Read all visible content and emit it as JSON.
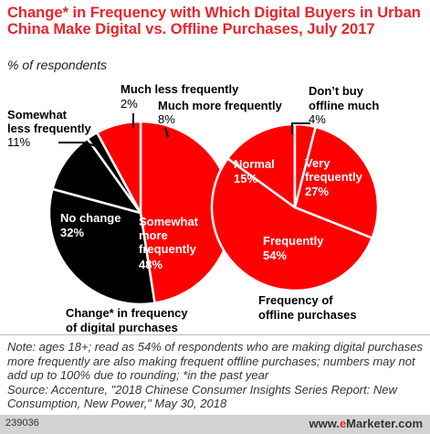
{
  "title": "Change* in Frequency with Which Digital Buyers in Urban China Make Digital vs. Offline Purchases, July 2017",
  "subtitle": "% of respondents",
  "colors": {
    "accent": "#e8242b",
    "red": "#ff0000",
    "black": "#000000",
    "slice_border": "#ffffff"
  },
  "chart_data": [
    {
      "type": "pie",
      "caption": "Change* in frequency of digital purchases",
      "slices": [
        {
          "label": "Somewhat more frequently",
          "value": 48,
          "value_label": "48%",
          "color": "#ff0000"
        },
        {
          "label": "No change",
          "value": 32,
          "value_label": "32%",
          "color": "#000000"
        },
        {
          "label": "Somewhat less frequently",
          "value": 11,
          "value_label": "11%",
          "color": "#000000"
        },
        {
          "label": "Much less frequently",
          "value": 2,
          "value_label": "2%",
          "color": "#000000"
        },
        {
          "label": "Much more frequently",
          "value": 8,
          "value_label": "8%",
          "color": "#ff0000"
        }
      ]
    },
    {
      "type": "pie",
      "caption": "Frequency of offline purchases",
      "slices": [
        {
          "label": "Very frequently",
          "value": 27,
          "value_label": "27%",
          "color": "#ff0000"
        },
        {
          "label": "Frequently",
          "value": 54,
          "value_label": "54%",
          "color": "#ff0000"
        },
        {
          "label": "Normal",
          "value": 15,
          "value_label": "15%",
          "color": "#ff0000"
        },
        {
          "label": "Don’t buy offline much",
          "value": 4,
          "value_label": "4%",
          "color": "#ff0000"
        }
      ]
    }
  ],
  "note": "Note: ages 18+; read as 54% of respondents who are making digital purchases more frequently are also making frequent offline purchases; numbers may not add up to 100% due to rounding; *in the past year",
  "source": "Source: Accenture, \"2018 Chinese Consumer Insights Series Report: New Consumption, New Power,\" May 30, 2018",
  "footer": {
    "id": "239036",
    "brand_prefix": "www.",
    "brand_e": "e",
    "brand_rest": "Marketer",
    "brand_suffix": ".com"
  }
}
